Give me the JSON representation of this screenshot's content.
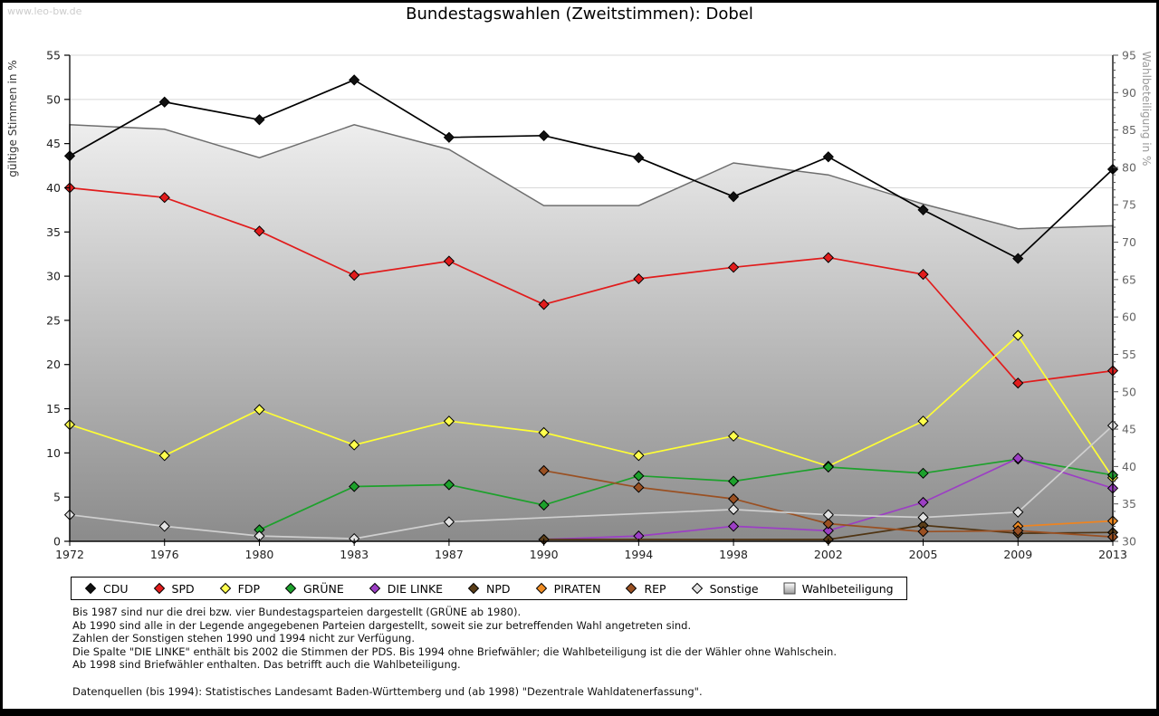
{
  "watermark": "www.leo-bw.de",
  "chart_data": {
    "type": "line",
    "title": "Bundestagswahlen (Zweitstimmen): Dobel",
    "x_categories": [
      "1972",
      "1976",
      "1980",
      "1983",
      "1987",
      "1990",
      "1994",
      "1998",
      "2002",
      "2005",
      "2009",
      "2013"
    ],
    "left_axis": {
      "label": "gültige Stimmen in %",
      "min": 0,
      "max": 55,
      "step": 5
    },
    "right_axis": {
      "label": "Wahlbeteiligung in %",
      "min": 30,
      "max": 95,
      "step": 5
    },
    "grid": true,
    "legend_position": "bottom",
    "series": [
      {
        "name": "CDU",
        "color": "#000000",
        "marker_fill": "#111111",
        "values": [
          43.6,
          49.7,
          47.7,
          52.2,
          45.7,
          45.9,
          43.4,
          39.0,
          43.5,
          37.5,
          32.0,
          42.1
        ]
      },
      {
        "name": "SPD",
        "color": "#e11c1c",
        "marker_fill": "#e11c1c",
        "values": [
          40.0,
          38.9,
          35.1,
          30.1,
          31.7,
          26.8,
          29.7,
          31.0,
          32.1,
          30.2,
          17.9,
          19.3
        ]
      },
      {
        "name": "FDP",
        "color": "#ffff33",
        "marker_fill": "#ffff4d",
        "values": [
          13.2,
          9.7,
          14.9,
          10.9,
          13.6,
          12.3,
          9.7,
          11.9,
          8.5,
          13.6,
          23.3,
          7.2
        ]
      },
      {
        "name": "GRÜNE",
        "color": "#1da12c",
        "marker_fill": "#1da12c",
        "values": [
          null,
          null,
          1.3,
          6.2,
          6.4,
          4.1,
          7.4,
          6.8,
          8.4,
          7.7,
          9.3,
          7.5
        ]
      },
      {
        "name": "DIE LINKE",
        "color": "#9c3fc4",
        "marker_fill": "#9c3fc4",
        "values": [
          null,
          null,
          null,
          null,
          null,
          0.2,
          0.6,
          1.7,
          1.2,
          4.4,
          9.4,
          6.0
        ]
      },
      {
        "name": "NPD",
        "color": "#4f3413",
        "marker_fill": "#5a3d18",
        "values": [
          null,
          null,
          null,
          null,
          null,
          0.2,
          null,
          null,
          0.2,
          1.8,
          0.9,
          1.0
        ]
      },
      {
        "name": "PIRATEN",
        "color": "#ee8420",
        "marker_fill": "#f08c24",
        "values": [
          null,
          null,
          null,
          null,
          null,
          null,
          null,
          null,
          null,
          null,
          1.7,
          2.3
        ]
      },
      {
        "name": "REP",
        "color": "#9a5022",
        "marker_fill": "#9a5022",
        "values": [
          null,
          null,
          null,
          null,
          null,
          8.0,
          6.1,
          4.8,
          2.0,
          1.1,
          1.2,
          0.5
        ]
      },
      {
        "name": "Sonstige",
        "color": "#cfcfcf",
        "marker_fill": "#e3e3e3",
        "values": [
          3.0,
          1.7,
          0.6,
          0.3,
          2.2,
          null,
          null,
          3.6,
          3.0,
          2.7,
          3.3,
          13.1
        ]
      }
    ],
    "turnout": {
      "name": "Wahlbeteiligung",
      "axis": "right",
      "stroke": "#6e6e6e",
      "fill_top": "#fefefe",
      "fill_bottom": "#8b8b8b",
      "values": [
        85.7,
        85.1,
        81.3,
        85.7,
        82.4,
        74.9,
        74.9,
        80.6,
        79.0,
        75.1,
        71.8,
        72.2
      ]
    },
    "colors": {
      "gridline": "#d8d8d8",
      "axis": "#000000",
      "tick_label_left": "#222222",
      "tick_label_right": "#666666",
      "axis_label_left": "#333333",
      "axis_label_right": "#999999"
    }
  },
  "footnotes": {
    "lines": [
      "Bis 1987 sind nur die drei bzw. vier Bundestagsparteien dargestellt (GRÜNE ab 1980).",
      "Ab 1990 sind alle in der Legende angegebenen Parteien dargestellt, soweit sie zur betreffenden Wahl angetreten sind.",
      "Zahlen der Sonstigen stehen 1990 und 1994 nicht zur Verfügung.",
      "Die Spalte \"DIE LINKE\" enthält bis 2002 die Stimmen der PDS. Bis 1994 ohne Briefwähler; die Wahlbeteiligung ist die der Wähler ohne Wahlschein.",
      "Ab 1998 sind Briefwähler enthalten. Das betrifft auch die Wahlbeteiligung."
    ],
    "source": "Datenquellen (bis 1994): Statistisches Landesamt Baden-Württemberg und (ab 1998) \"Dezentrale Wahldatenerfassung\"."
  }
}
